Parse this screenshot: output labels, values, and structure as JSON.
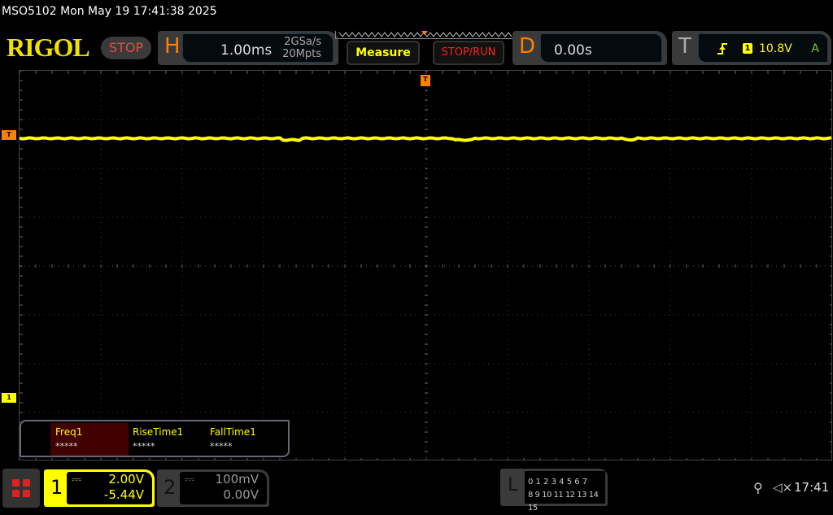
{
  "header": {
    "title": "MSO5102  Mon May 19 17:41:38 2025",
    "logo": "RIGOL",
    "run_state": "STOP"
  },
  "horizontal": {
    "letter": "H",
    "timebase": "1.00ms",
    "sample_rate": "2GSa/s",
    "memory_depth": "20Mpts"
  },
  "buttons": {
    "measure": "Measure",
    "stop_run": "STOP/RUN"
  },
  "delay": {
    "letter": "D",
    "value": "0.00s"
  },
  "trigger": {
    "letter": "T",
    "edge_icon": "rising-edge-icon",
    "source": "1",
    "level": "10.8V",
    "mode": "A",
    "marker": "T"
  },
  "channel_markers": {
    "trigger_level": "T",
    "ch1": "1"
  },
  "measurements": [
    {
      "label": "Freq1",
      "value": "*****"
    },
    {
      "label": "RiseTime1",
      "value": "*****"
    },
    {
      "label": "FallTime1",
      "value": "*****"
    }
  ],
  "channels": [
    {
      "num": "1",
      "scale": "2.00V",
      "offset": "-5.44V",
      "color": "#ffff00"
    },
    {
      "num": "2",
      "scale": "100mV",
      "offset": "0.00V",
      "color": "#888888"
    }
  ],
  "logic": {
    "letter": "L",
    "row1": "0 1 2 3  4 5 6 7",
    "row2": "8 9 10 11 12 13 14 15"
  },
  "status": {
    "usb_icon": "usb-icon",
    "mute_icon": "speaker-muted-icon",
    "time": "17:41"
  },
  "colors": {
    "trace": "#ffff00",
    "accent": "#ff8000",
    "grid": "#444444"
  }
}
